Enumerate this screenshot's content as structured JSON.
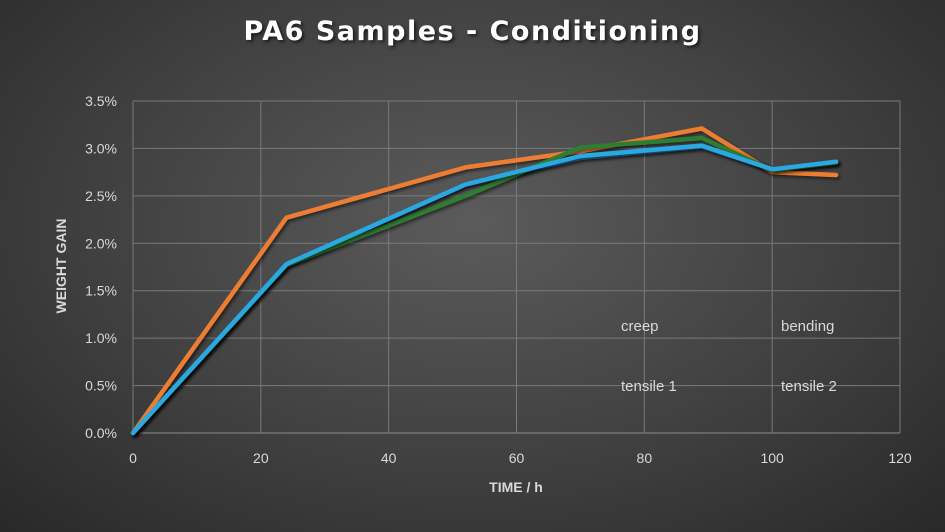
{
  "chart_data": {
    "type": "line",
    "title": "PA6 Samples - Conditioning",
    "xlabel": "TIME / h",
    "ylabel": "WEIGHT GAIN",
    "xlim": [
      0,
      120
    ],
    "ylim": [
      0,
      0.035
    ],
    "xticks": [
      0,
      20,
      40,
      60,
      80,
      100,
      120
    ],
    "xtick_labels": [
      "0",
      "20",
      "40",
      "60",
      "80",
      "100",
      "120"
    ],
    "yticks": [
      0,
      0.005,
      0.01,
      0.015,
      0.02,
      0.025,
      0.03,
      0.035
    ],
    "ytick_labels": [
      "0.0%",
      "0.5%",
      "1.0%",
      "1.5%",
      "2.0%",
      "2.5%",
      "3.0%",
      "3.5%"
    ],
    "grid": true,
    "legend_position": "lower-right inside plot",
    "series": [
      {
        "name": "creep",
        "color": "#2e75b6",
        "x": [
          0,
          24,
          52,
          70,
          89,
          100,
          110
        ],
        "y": [
          0,
          0.0178,
          0.0262,
          0.029,
          0.0302,
          0.0278,
          0.0285
        ]
      },
      {
        "name": "bending",
        "color": "#ed7d31",
        "x": [
          0,
          24,
          52,
          70,
          89,
          100,
          110
        ],
        "y": [
          0,
          0.0227,
          0.028,
          0.0297,
          0.0321,
          0.0275,
          0.0272
        ]
      },
      {
        "name": "tensile 1",
        "color": "#2e7d32",
        "x": [
          0,
          24,
          52,
          70,
          89,
          100,
          110
        ],
        "y": [
          0,
          0.0177,
          0.025,
          0.0301,
          0.0311,
          0.0277,
          0.0285
        ]
      },
      {
        "name": "tensile 2",
        "color": "#29a8e0",
        "x": [
          0,
          24,
          52,
          70,
          89,
          100,
          110
        ],
        "y": [
          0,
          0.0178,
          0.0262,
          0.0292,
          0.0303,
          0.0278,
          0.0286
        ]
      }
    ]
  }
}
